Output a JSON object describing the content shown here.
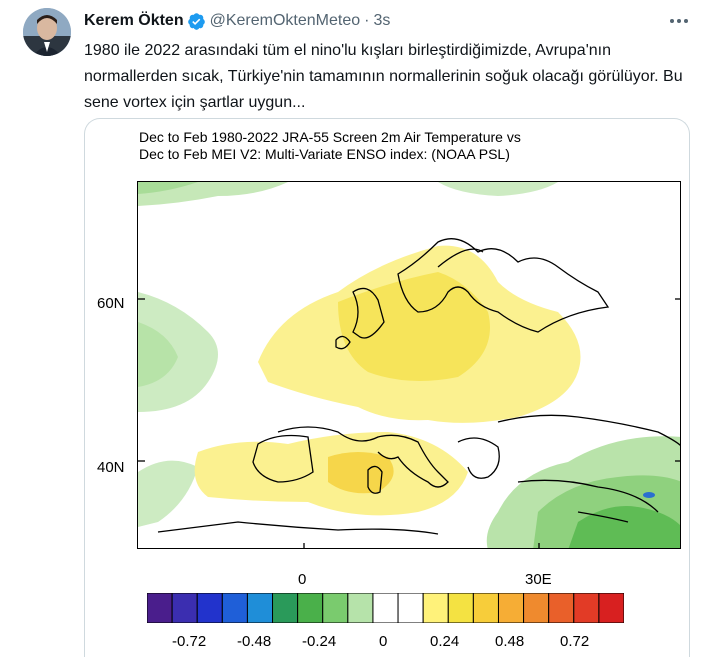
{
  "tweet": {
    "author_name": "Kerem Ökten",
    "handle": "@KeremOktenMeteo",
    "separator": "·",
    "time": "3s",
    "text": "1980 ile 2022 arasındaki tüm el nino'lu kışları birleştirdiğimizde, Avrupa'nın normallerden sıcak, Türkiye'nin tamamının normallerinin soğuk olacağı görülüyor. Bu sene vortex için şartlar uygun..."
  },
  "figure": {
    "title_line1": "Dec to Feb 1980-2022 JRA-55 Screen 2m Air Temperature vs",
    "title_line2": "Dec to Feb MEI V2: Multi-Variate ENSO index: (NOAA PSL)",
    "lat_labels": [
      "60N",
      "40N"
    ],
    "lon_labels": [
      "0",
      "30E"
    ],
    "colorbar": {
      "colors": [
        "#4a1e8c",
        "#3b2eb0",
        "#2233cc",
        "#1f5fd8",
        "#1f8ed8",
        "#2a9a5a",
        "#4ab04a",
        "#7acb6e",
        "#b6e3aa",
        "#ffffff",
        "#ffffff",
        "#fff27a",
        "#f4e242",
        "#f7cd3a",
        "#f6ad35",
        "#ef8a2e",
        "#e9602a",
        "#e23b26",
        "#d82020"
      ],
      "tick_labels": [
        "-0.72",
        "-0.48",
        "-0.24",
        "0",
        "0.24",
        "0.48",
        "0.72"
      ]
    }
  }
}
